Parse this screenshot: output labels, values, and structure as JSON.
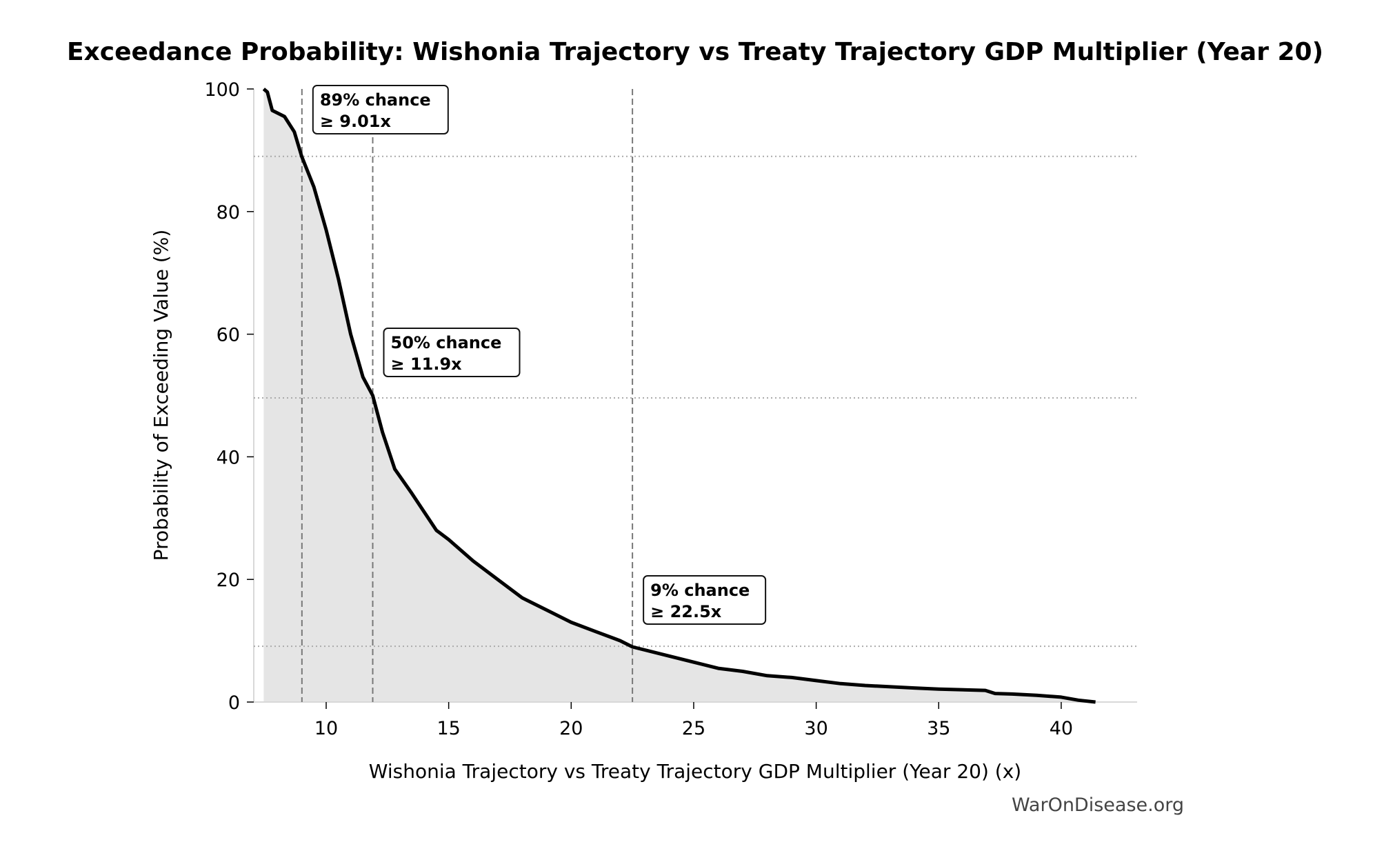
{
  "chart_data": {
    "type": "area",
    "title": "Exceedance Probability: Wishonia Trajectory vs Treaty Trajectory GDP Multiplier (Year 20)",
    "xlabel": "Wishonia Trajectory vs Treaty Trajectory GDP Multiplier (Year 20) (x)",
    "ylabel": "Probability of Exceeding Value (%)",
    "xlim": [
      7.0,
      43.1
    ],
    "ylim": [
      0,
      100
    ],
    "xticks": [
      10,
      15,
      20,
      25,
      30,
      35,
      40
    ],
    "yticks": [
      0,
      20,
      40,
      60,
      80,
      100
    ],
    "grid": false,
    "line_color": "#000000",
    "fill_color": "#e5e5e5",
    "x": [
      7.45,
      7.6,
      7.8,
      8.3,
      8.7,
      9.0,
      9.5,
      10.0,
      10.5,
      11.0,
      11.5,
      11.9,
      12.3,
      12.8,
      13.5,
      14.0,
      14.5,
      15.0,
      16.0,
      17.0,
      18.0,
      19.0,
      20.0,
      21.0,
      22.0,
      22.5,
      24.0,
      25.0,
      26.0,
      27.0,
      28.0,
      29.0,
      30.0,
      31.0,
      32.0,
      34.0,
      35.0,
      36.9,
      37.3,
      38.0,
      39.0,
      40.0,
      40.7,
      41.4
    ],
    "values": [
      100,
      99.5,
      96.5,
      95.5,
      93,
      89,
      84,
      77,
      69,
      60,
      53,
      50,
      44,
      38,
      34,
      31,
      28,
      26.5,
      23,
      20,
      17,
      15,
      13,
      11.5,
      10,
      9,
      7.5,
      6.5,
      5.5,
      5,
      4.3,
      4,
      3.5,
      3,
      2.7,
      2.3,
      2.1,
      1.9,
      1.4,
      1.3,
      1.1,
      0.8,
      0.3,
      0
    ],
    "reference_lines": [
      {
        "x": 9.01,
        "y": 89,
        "label_line1": "89% chance",
        "label_line2": "≥ 9.01x"
      },
      {
        "x": 11.9,
        "y": 49.6,
        "label_line1": "50% chance",
        "label_line2": "≥ 11.9x"
      },
      {
        "x": 22.5,
        "y": 9.1,
        "label_line1": "9% chance",
        "label_line2": "≥ 22.5x"
      }
    ]
  },
  "watermark": "WarOnDisease.org"
}
